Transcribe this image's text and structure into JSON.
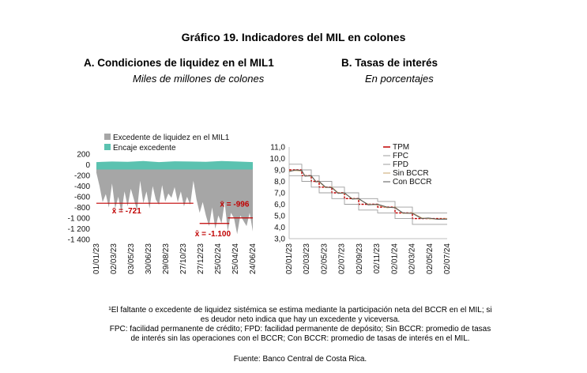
{
  "figure": {
    "title": "Gráfico 19. Indicadores del MIL en colones",
    "panel_a": {
      "heading": "A.  Condiciones de liquidez en el MIL1",
      "unit": "Miles de millones de colones"
    },
    "panel_b": {
      "heading": "B. Tasas de interés",
      "unit": "En porcentajes"
    },
    "notes": {
      "line1": "¹El faltante o excedente de liquidez sistémica se estima mediante la participación neta del BCCR en el MIL; si",
      "line2": "es deudor neto indica que hay un excedente y viceversa.",
      "line3": "FPC: facilidad permanente de crédito; FPD: facilidad permanente de depósito; Sin BCCR: promedio de tasas",
      "line4": "de interés sin las operaciones con el BCCR; Con BCCR: promedio de tasas de interés en el MIL."
    },
    "source": "Fuente: Banco Central de Costa Rica."
  },
  "colors": {
    "excedente": "#a6a6a6",
    "encaje": "#5bc2b0",
    "mean_line": "#c00000",
    "tpm": "#c00000",
    "band": "#9e9e9e",
    "sin_bccr": "#c9a66b",
    "con_bccr": "#555555"
  },
  "chart_data": [
    {
      "type": "area",
      "title": "Condiciones de liquidez en el MIL1",
      "ylabel": "Miles de millones de colones",
      "ylim": [
        -1400,
        200
      ],
      "yticks": [
        "200",
        "0",
        "-200",
        "-400",
        "-600",
        "-800",
        "-1 000",
        "-1 200",
        "-1 400"
      ],
      "yticks_values": [
        200,
        0,
        -200,
        -400,
        -600,
        -800,
        -1000,
        -1200,
        -1400
      ],
      "xticks": [
        "01/01/23",
        "02/03/23",
        "03/05/23",
        "30/06/23",
        "29/08/23",
        "27/10/23",
        "27/12/23",
        "25/02/24",
        "25/04/24",
        "24/06/24"
      ],
      "x_range": [
        "01/01/23",
        "31/07/24"
      ],
      "legend": [
        "Excedente de liquidez en el MIL1",
        "Encaje excedente"
      ],
      "series": [
        {
          "name": "Excedente de liquidez en el MIL1",
          "x": [
            0,
            0.02,
            0.04,
            0.06,
            0.08,
            0.1,
            0.12,
            0.14,
            0.16,
            0.18,
            0.2,
            0.22,
            0.24,
            0.26,
            0.28,
            0.3,
            0.32,
            0.34,
            0.36,
            0.38,
            0.4,
            0.42,
            0.44,
            0.46,
            0.48,
            0.5,
            0.52,
            0.54,
            0.56,
            0.58,
            0.6,
            0.62,
            0.64,
            0.66,
            0.68,
            0.7,
            0.72,
            0.74,
            0.76,
            0.78,
            0.8,
            0.82,
            0.84,
            0.86,
            0.88,
            0.9,
            0.92,
            0.94,
            0.96,
            0.98,
            1.0
          ],
          "values": [
            -150,
            -400,
            -700,
            -550,
            -800,
            -350,
            -820,
            -600,
            -900,
            -500,
            -780,
            -450,
            -650,
            -850,
            -300,
            -720,
            -500,
            -820,
            -400,
            -650,
            -750,
            -380,
            -690,
            -540,
            -620,
            -420,
            -700,
            -500,
            -780,
            -600,
            -750,
            -300,
            -650,
            -900,
            -700,
            -950,
            -1150,
            -800,
            -1200,
            -950,
            -1100,
            -700,
            -1250,
            -900,
            -1000,
            -1300,
            -950,
            -1050,
            -1150,
            -900,
            -1250
          ]
        },
        {
          "name": "Encaje excedente",
          "x": [
            0,
            0.1,
            0.2,
            0.3,
            0.4,
            0.5,
            0.6,
            0.7,
            0.8,
            0.9,
            1.0
          ],
          "values": [
            50,
            60,
            55,
            70,
            50,
            65,
            60,
            55,
            70,
            60,
            50
          ]
        }
      ],
      "annotations": [
        {
          "label": "x̄ = -721",
          "value": -721,
          "x_start": 0,
          "x_end": 0.62
        },
        {
          "label": "x̄ = -1.100",
          "value": -1100,
          "x_start": 0.66,
          "x_end": 0.85
        },
        {
          "label": "x̄ = -996",
          "value": -996,
          "x_start": 0.84,
          "x_end": 1.0
        }
      ]
    },
    {
      "type": "line",
      "title": "Tasas de interés",
      "ylabel": "En porcentajes",
      "ylim": [
        3.0,
        11.0
      ],
      "yticks": [
        "11,0",
        "10,0",
        "9,0",
        "8,0",
        "7,0",
        "6,0",
        "5,0",
        "4,0",
        "3,0"
      ],
      "yticks_values": [
        11,
        10,
        9,
        8,
        7,
        6,
        5,
        4,
        3
      ],
      "xticks": [
        "02/01/23",
        "02/03/23",
        "02/05/23",
        "02/07/23",
        "02/09/23",
        "02/11/23",
        "02/01/24",
        "02/03/24",
        "02/05/24",
        "02/07/24"
      ],
      "legend": [
        "TPM",
        "FPC",
        "FPD",
        "Sin BCCR",
        "Con BCCR"
      ],
      "series": [
        {
          "name": "TPM",
          "x": [
            0,
            0.08,
            0.08,
            0.14,
            0.14,
            0.19,
            0.19,
            0.27,
            0.27,
            0.35,
            0.35,
            0.44,
            0.44,
            0.56,
            0.56,
            0.67,
            0.67,
            0.78,
            0.78,
            0.88,
            0.88,
            1.0
          ],
          "values": [
            9.0,
            9.0,
            8.5,
            8.5,
            8.0,
            8.0,
            7.5,
            7.5,
            7.0,
            7.0,
            6.5,
            6.5,
            6.0,
            6.0,
            5.75,
            5.75,
            5.25,
            5.25,
            4.75,
            4.75,
            4.75,
            4.75
          ]
        },
        {
          "name": "FPC",
          "x": [
            0,
            0.08,
            0.08,
            0.14,
            0.14,
            0.19,
            0.19,
            0.27,
            0.27,
            0.35,
            0.35,
            0.44,
            0.44,
            0.56,
            0.56,
            0.67,
            0.67,
            0.78,
            0.78,
            0.88,
            0.88,
            1.0
          ],
          "values": [
            9.5,
            9.5,
            9.0,
            9.0,
            8.5,
            8.5,
            8.0,
            8.0,
            7.5,
            7.5,
            7.0,
            7.0,
            6.5,
            6.5,
            6.25,
            6.25,
            5.75,
            5.75,
            5.25,
            5.25,
            5.25,
            5.25
          ]
        },
        {
          "name": "FPD",
          "x": [
            0,
            0.08,
            0.08,
            0.14,
            0.14,
            0.19,
            0.19,
            0.27,
            0.27,
            0.35,
            0.35,
            0.44,
            0.44,
            0.56,
            0.56,
            0.67,
            0.67,
            0.78,
            0.78,
            0.88,
            0.88,
            1.0
          ],
          "values": [
            8.5,
            8.5,
            8.0,
            8.0,
            7.5,
            7.5,
            7.0,
            7.0,
            6.5,
            6.5,
            6.0,
            6.0,
            5.5,
            5.5,
            5.25,
            5.25,
            4.75,
            4.75,
            4.25,
            4.25,
            4.25,
            4.25
          ]
        },
        {
          "name": "Sin BCCR",
          "x": [
            0,
            0.04,
            0.08,
            0.1,
            0.14,
            0.17,
            0.19,
            0.23,
            0.27,
            0.31,
            0.35,
            0.4,
            0.44,
            0.5,
            0.56,
            0.62,
            0.67,
            0.72,
            0.78,
            0.84,
            0.88,
            0.94,
            1.0
          ],
          "values": [
            8.9,
            8.95,
            8.9,
            8.5,
            8.45,
            8.0,
            7.95,
            7.45,
            7.5,
            7.0,
            6.95,
            6.5,
            6.45,
            6.0,
            5.95,
            5.7,
            5.75,
            5.2,
            5.25,
            4.8,
            4.75,
            4.7,
            4.75
          ]
        },
        {
          "name": "Con BCCR",
          "x": [
            0,
            0.04,
            0.08,
            0.1,
            0.14,
            0.17,
            0.19,
            0.23,
            0.27,
            0.31,
            0.35,
            0.4,
            0.44,
            0.5,
            0.56,
            0.62,
            0.67,
            0.72,
            0.78,
            0.84,
            0.88,
            0.94,
            1.0
          ],
          "values": [
            8.85,
            9.0,
            8.95,
            8.45,
            8.5,
            7.95,
            8.0,
            7.5,
            7.45,
            6.95,
            7.0,
            6.45,
            6.5,
            5.95,
            6.0,
            5.75,
            5.7,
            5.25,
            5.2,
            4.75,
            4.8,
            4.7,
            4.7
          ]
        }
      ]
    }
  ]
}
